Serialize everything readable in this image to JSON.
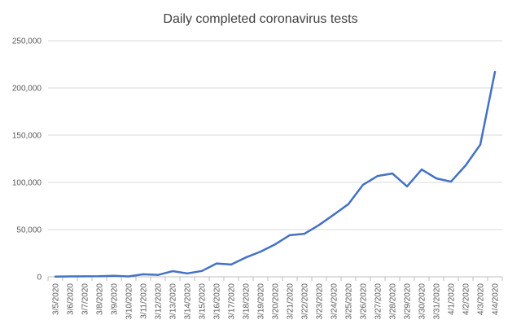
{
  "chart_data": {
    "type": "line",
    "title": "Daily completed coronavirus tests",
    "xlabel": "",
    "ylabel": "",
    "ylim": [
      0,
      250000
    ],
    "y_ticks": [
      0,
      50000,
      100000,
      150000,
      200000,
      250000
    ],
    "y_tick_labels": [
      "0",
      "50,000",
      "100,000",
      "150,000",
      "200,000",
      "250,000"
    ],
    "grid": "horizontal",
    "legend": "none",
    "line_color": "#4472C4",
    "categories": [
      "3/5/2020",
      "3/6/2020",
      "3/7/2020",
      "3/8/2020",
      "3/9/2020",
      "3/10/2020",
      "3/11/2020",
      "3/12/2020",
      "3/13/2020",
      "3/14/2020",
      "3/15/2020",
      "3/16/2020",
      "3/17/2020",
      "3/18/2020",
      "3/19/2020",
      "3/20/2020",
      "3/21/2020",
      "3/22/2020",
      "3/23/2020",
      "3/24/2020",
      "3/25/2020",
      "3/26/2020",
      "3/27/2020",
      "3/28/2020",
      "3/29/2020",
      "3/30/2020",
      "3/31/2020",
      "4/1/2020",
      "4/2/2020",
      "4/3/2020",
      "4/4/2020"
    ],
    "series": [
      {
        "values": [
          200,
          400,
          500,
          600,
          1100,
          400,
          2700,
          2000,
          6000,
          3600,
          6200,
          14100,
          13000,
          20500,
          26600,
          34400,
          44100,
          45600,
          54900,
          65800,
          77000,
          97500,
          106800,
          109400,
          95700,
          113600,
          104200,
          100800,
          118000,
          140000,
          217000
        ]
      }
    ]
  }
}
